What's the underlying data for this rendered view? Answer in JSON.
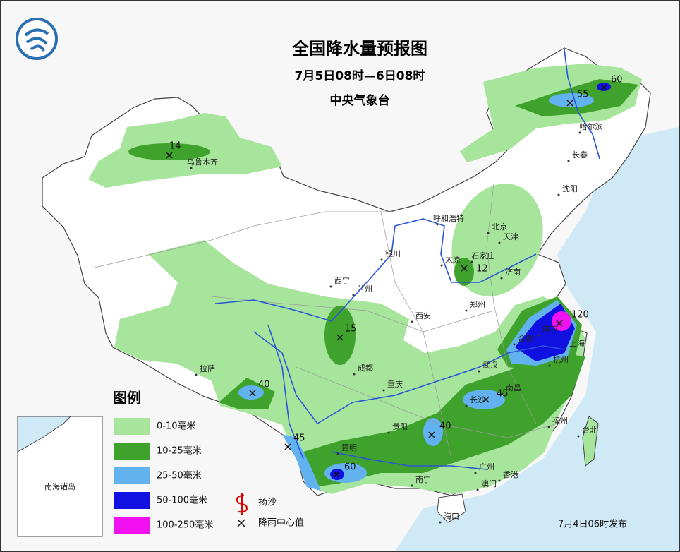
{
  "header": {
    "title": "全国降水量预报图",
    "subtitle": "7月5日08时—6日08时",
    "issuer": "中央气象台"
  },
  "legend": {
    "title": "图例",
    "items": [
      {
        "label": "0-10毫米",
        "color": "#a8e59c"
      },
      {
        "label": "10-25毫米",
        "color": "#3ea22c"
      },
      {
        "label": "25-50毫米",
        "color": "#62b2ef"
      },
      {
        "label": "50-100毫米",
        "color": "#1010e0"
      },
      {
        "label": "100-250毫米",
        "color": "#f010f0"
      }
    ],
    "symbols": [
      "扬沙",
      "降雨中心值"
    ]
  },
  "cities": [
    "乌鲁木齐",
    "哈尔滨",
    "长春",
    "沈阳",
    "呼和浩特",
    "北京",
    "天津",
    "石家庄",
    "太原",
    "济南",
    "银川",
    "西宁",
    "兰州",
    "西安",
    "郑州",
    "合肥",
    "南京",
    "上海",
    "杭州",
    "武汉",
    "南昌",
    "长沙",
    "福州",
    "台北",
    "成都",
    "重庆",
    "贵阳",
    "昆明",
    "南宁",
    "广州",
    "香港",
    "澳门",
    "海口",
    "拉萨"
  ],
  "rain_centers": [
    14,
    55,
    60,
    12,
    15,
    120,
    40,
    45,
    40,
    45,
    60
  ],
  "inset": {
    "label": "南海诸岛"
  },
  "footer": {
    "issued": "7月4日06时发布"
  }
}
